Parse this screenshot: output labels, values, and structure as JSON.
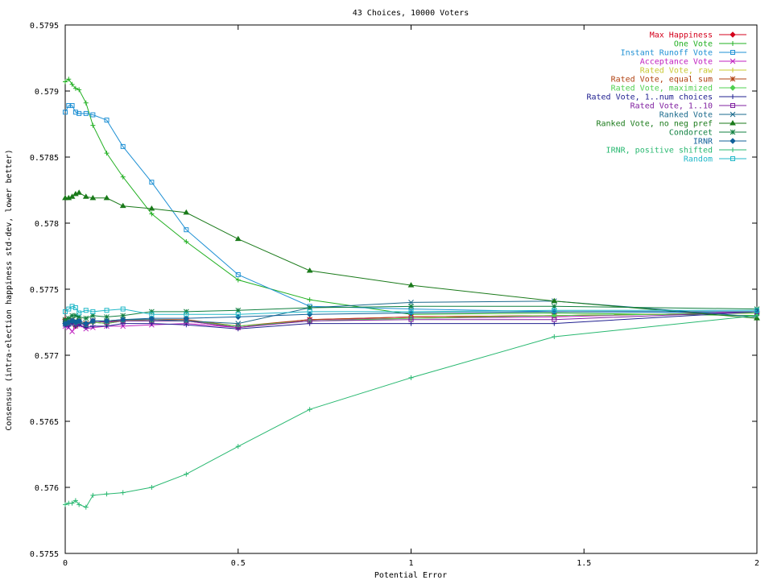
{
  "chart_data": {
    "type": "line",
    "title": "43 Choices, 10000 Voters",
    "xlabel": "Potential Error",
    "ylabel": "Consensus (intra-election happiness std-dev, lower better)",
    "xlim": [
      0,
      2
    ],
    "ylim": [
      0.5755,
      0.5795
    ],
    "xticks": [
      0,
      0.5,
      1,
      1.5,
      2
    ],
    "xtick_labels": [
      "0",
      "0.5",
      "1",
      "1.5",
      "2"
    ],
    "yticks": [
      0.5755,
      0.576,
      0.5765,
      0.577,
      0.5775,
      0.578,
      0.5785,
      0.579,
      0.5795
    ],
    "ytick_labels": [
      "0.5755",
      "0.576",
      "0.5765",
      "0.577",
      "0.5775",
      "0.578",
      "0.5785",
      "0.579",
      "0.5795"
    ],
    "grid": false,
    "legend_position": "top-right",
    "series": [
      {
        "name": "Max Happiness",
        "color": "#d4001c",
        "marker": "diamond",
        "x": [
          0,
          0.01,
          0.02,
          0.03,
          0.04,
          0.06,
          0.08,
          0.12,
          0.167,
          0.25,
          0.35,
          0.5,
          0.707,
          1,
          1.414,
          2
        ],
        "y": [
          0.57727,
          0.57724,
          0.57726,
          0.57722,
          0.57725,
          0.57723,
          0.57725,
          0.57724,
          0.57726,
          0.57727,
          0.57726,
          0.57721,
          0.57727,
          0.57729,
          0.5773,
          0.57732
        ]
      },
      {
        "name": "One Vote",
        "color": "#22b022",
        "marker": "plus",
        "x": [
          0,
          0.01,
          0.02,
          0.03,
          0.04,
          0.06,
          0.08,
          0.12,
          0.167,
          0.25,
          0.35,
          0.5,
          0.707,
          1,
          1.414,
          2
        ],
        "y": [
          0.57907,
          0.57909,
          0.57905,
          0.57902,
          0.57901,
          0.57891,
          0.57874,
          0.57853,
          0.57835,
          0.57807,
          0.57786,
          0.57757,
          0.57742,
          0.57731,
          0.57732,
          0.5773
        ]
      },
      {
        "name": "Instant Runoff Vote",
        "color": "#1e90d4",
        "marker": "square",
        "x": [
          0,
          0.01,
          0.02,
          0.03,
          0.04,
          0.06,
          0.08,
          0.12,
          0.167,
          0.25,
          0.35,
          0.5,
          0.707,
          1,
          1.414,
          2
        ],
        "y": [
          0.57884,
          0.57889,
          0.57889,
          0.57884,
          0.57883,
          0.57883,
          0.57882,
          0.57878,
          0.57858,
          0.57831,
          0.57795,
          0.57761,
          0.57737,
          0.57735,
          0.57733,
          0.57732
        ]
      },
      {
        "name": "Acceptance Vote",
        "color": "#c020c0",
        "marker": "x",
        "x": [
          0,
          0.01,
          0.02,
          0.03,
          0.04,
          0.06,
          0.08,
          0.12,
          0.167,
          0.25,
          0.35,
          0.5,
          0.707,
          1,
          1.414,
          2
        ],
        "y": [
          0.57722,
          0.57721,
          0.57718,
          0.57722,
          0.57723,
          0.5772,
          0.57721,
          0.57722,
          0.57722,
          0.57723,
          0.57724,
          0.57721,
          0.57727,
          0.57728,
          0.57729,
          0.57733
        ]
      },
      {
        "name": "Rated Vote, raw",
        "color": "#c8c832",
        "marker": "plus",
        "x": [
          0,
          0.01,
          0.02,
          0.03,
          0.04,
          0.06,
          0.08,
          0.12,
          0.167,
          0.25,
          0.35,
          0.5,
          0.707,
          1,
          1.414,
          2
        ],
        "y": [
          0.57725,
          0.57724,
          0.57726,
          0.57724,
          0.57725,
          0.57723,
          0.57726,
          0.57725,
          0.57726,
          0.57727,
          0.57726,
          0.57722,
          0.57726,
          0.57728,
          0.5773,
          0.57732
        ]
      },
      {
        "name": "Rated Vote, equal sum",
        "color": "#b04010",
        "marker": "star",
        "x": [
          0,
          0.01,
          0.02,
          0.03,
          0.04,
          0.06,
          0.08,
          0.12,
          0.167,
          0.25,
          0.35,
          0.5,
          0.707,
          1,
          1.414,
          2
        ],
        "y": [
          0.57726,
          0.57725,
          0.57727,
          0.57723,
          0.57726,
          0.57724,
          0.57726,
          0.57725,
          0.57727,
          0.57727,
          0.57727,
          0.57722,
          0.57727,
          0.57729,
          0.5773,
          0.57732
        ]
      },
      {
        "name": "Rated Vote, maximized",
        "color": "#50d050",
        "marker": "diamond",
        "x": [
          0,
          0.01,
          0.02,
          0.03,
          0.04,
          0.06,
          0.08,
          0.12,
          0.167,
          0.25,
          0.35,
          0.5,
          0.707,
          1,
          1.414,
          2
        ],
        "y": [
          0.57724,
          0.57724,
          0.57726,
          0.57723,
          0.57725,
          0.57723,
          0.57725,
          0.57724,
          0.57726,
          0.57726,
          0.57726,
          0.57722,
          0.57726,
          0.57728,
          0.5773,
          0.57732
        ]
      },
      {
        "name": "Rated Vote, 1..num choices",
        "color": "#202090",
        "marker": "plus",
        "x": [
          0,
          0.01,
          0.02,
          0.03,
          0.04,
          0.06,
          0.08,
          0.12,
          0.167,
          0.25,
          0.35,
          0.5,
          0.707,
          1,
          1.414,
          2
        ],
        "y": [
          0.57722,
          0.57722,
          0.57724,
          0.57722,
          0.57723,
          0.57721,
          0.57722,
          0.57722,
          0.57724,
          0.57724,
          0.57723,
          0.5772,
          0.57724,
          0.57724,
          0.57724,
          0.57733
        ]
      },
      {
        "name": "Rated Vote, 1..10",
        "color": "#8020a0",
        "marker": "square",
        "x": [
          0,
          0.01,
          0.02,
          0.03,
          0.04,
          0.06,
          0.08,
          0.12,
          0.167,
          0.25,
          0.35,
          0.5,
          0.707,
          1,
          1.414,
          2
        ],
        "y": [
          0.57725,
          0.57724,
          0.57726,
          0.57724,
          0.57725,
          0.57722,
          0.57726,
          0.57725,
          0.57726,
          0.57726,
          0.57726,
          0.57721,
          0.57726,
          0.57727,
          0.57727,
          0.57733
        ]
      },
      {
        "name": "Ranked Vote",
        "color": "#1a6a8c",
        "marker": "x",
        "x": [
          0,
          0.01,
          0.02,
          0.03,
          0.04,
          0.06,
          0.08,
          0.12,
          0.167,
          0.25,
          0.35,
          0.5,
          0.707,
          1,
          1.414,
          2
        ],
        "y": [
          0.57724,
          0.57724,
          0.57727,
          0.57726,
          0.57725,
          0.57723,
          0.57726,
          0.57726,
          0.57727,
          0.57727,
          0.57726,
          0.57724,
          0.57736,
          0.5774,
          0.57741,
          0.57729
        ]
      },
      {
        "name": "Ranked Vote, no neg pref",
        "color": "#1a7a1a",
        "marker": "triangle",
        "x": [
          0,
          0.01,
          0.02,
          0.03,
          0.04,
          0.06,
          0.08,
          0.12,
          0.167,
          0.25,
          0.35,
          0.5,
          0.707,
          1,
          1.414,
          2
        ],
        "y": [
          0.57819,
          0.57819,
          0.5782,
          0.57822,
          0.57823,
          0.5782,
          0.57819,
          0.57819,
          0.57813,
          0.57811,
          0.57808,
          0.57788,
          0.57764,
          0.57753,
          0.57741,
          0.57728
        ]
      },
      {
        "name": "Condorcet",
        "color": "#108040",
        "marker": "star",
        "x": [
          0,
          0.01,
          0.02,
          0.03,
          0.04,
          0.06,
          0.08,
          0.12,
          0.167,
          0.25,
          0.35,
          0.5,
          0.707,
          1,
          1.414,
          2
        ],
        "y": [
          0.57727,
          0.57728,
          0.5773,
          0.5773,
          0.57729,
          0.57728,
          0.5773,
          0.57729,
          0.5773,
          0.57733,
          0.57733,
          0.57734,
          0.57736,
          0.57737,
          0.57737,
          0.57735
        ]
      },
      {
        "name": "IRNR",
        "color": "#10609a",
        "marker": "diamond",
        "x": [
          0,
          0.01,
          0.02,
          0.03,
          0.04,
          0.06,
          0.08,
          0.12,
          0.167,
          0.25,
          0.35,
          0.5,
          0.707,
          1,
          1.414,
          2
        ],
        "y": [
          0.57724,
          0.57725,
          0.57726,
          0.57725,
          0.57726,
          0.57724,
          0.57726,
          0.57726,
          0.57727,
          0.57728,
          0.57728,
          0.57729,
          0.57731,
          0.57732,
          0.57733,
          0.57733
        ]
      },
      {
        "name": "IRNR, positive shifted",
        "color": "#28b870",
        "marker": "plus",
        "x": [
          0,
          0.01,
          0.02,
          0.03,
          0.04,
          0.06,
          0.08,
          0.12,
          0.167,
          0.25,
          0.35,
          0.5,
          0.707,
          1,
          1.414,
          2
        ],
        "y": [
          0.57587,
          0.57588,
          0.57588,
          0.5759,
          0.57587,
          0.57585,
          0.57594,
          0.57595,
          0.57596,
          0.576,
          0.5761,
          0.57631,
          0.57659,
          0.57683,
          0.57714,
          0.5773
        ]
      },
      {
        "name": "Random",
        "color": "#20b8c8",
        "marker": "square",
        "x": [
          0,
          0.01,
          0.02,
          0.03,
          0.04,
          0.06,
          0.08,
          0.12,
          0.167,
          0.25,
          0.35,
          0.5,
          0.707,
          1,
          1.414,
          2
        ],
        "y": [
          0.57733,
          0.57735,
          0.57737,
          0.57736,
          0.57732,
          0.57734,
          0.57733,
          0.57734,
          0.57735,
          0.57731,
          0.57731,
          0.57731,
          0.57733,
          0.57733,
          0.57734,
          0.57734
        ]
      }
    ]
  }
}
